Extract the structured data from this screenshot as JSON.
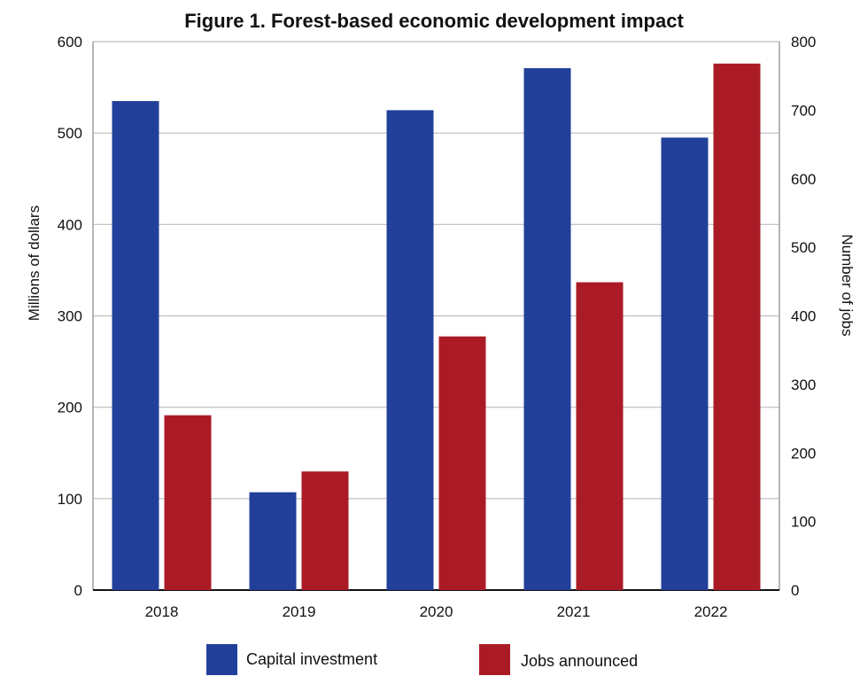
{
  "chart_data": {
    "type": "bar",
    "title": "Figure 1. Forest-based economic development impact",
    "categories": [
      "2018",
      "2019",
      "2020",
      "2021",
      "2022"
    ],
    "series": [
      {
        "name": "Capital investment",
        "axis": "left",
        "color": "#22409a",
        "values": [
          535,
          107,
          525,
          571,
          495
        ]
      },
      {
        "name": "Jobs announced",
        "axis": "right",
        "color": "#ab1b26",
        "values": [
          255,
          173,
          370,
          449,
          768
        ]
      }
    ],
    "ylabel": "Millions of dollars",
    "y2label": "Number of jobs",
    "ylim": [
      0,
      600
    ],
    "y2lim": [
      0,
      800
    ],
    "yticks": [
      0,
      100,
      200,
      300,
      400,
      500,
      600
    ],
    "y2ticks": [
      {
        "value": 0,
        "label": "0"
      },
      {
        "value": 100,
        "label": "100"
      },
      {
        "value": 200,
        "label": "200"
      },
      {
        "value": 300,
        "label": "300"
      },
      {
        "value": 400,
        "label": "400"
      },
      {
        "value": 500,
        "label": "500"
      },
      {
        "value": 600,
        "label": "600"
      },
      {
        "value": 700,
        "label": "700"
      },
      {
        "value": 800,
        "label": "800"
      }
    ],
    "grid": true,
    "legend_position": "bottom"
  }
}
